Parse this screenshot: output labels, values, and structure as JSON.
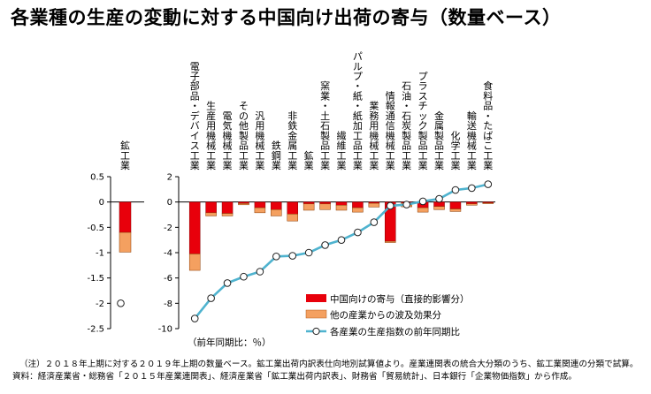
{
  "title": "各業種の生産の変動に対する中国向け出荷の寄与（数量ベース）",
  "notes": {
    "note": "（注）２０１８年上期に対する２０１９年上期の数量ベース。鉱工業出荷内訳表仕向地別試算値より。産業連関表の統合大分類のうち、鉱工業関連の分類で試算。",
    "source": "資料：経済産業省・総務省「２０１５年産業連関表」、経済産業省「鉱工業出荷内訳表」、財務省「貿易統計」、日本銀行「企業物価指数」から作成。"
  },
  "colors": {
    "china": "#e8000b",
    "spillover": "#f4a060",
    "line": "#4fb3cf",
    "axis": "#000000"
  },
  "chart_data": [
    {
      "type": "bar",
      "ylim": [
        -2.5,
        0.5
      ],
      "yticks": [
        "0.5",
        "0",
        "-0.5",
        "-1",
        "-1.5",
        "-2",
        "-2.5"
      ],
      "categories": [
        "鉱工業"
      ],
      "series": [
        {
          "name": "中国向けの寄与（直接的影響分）",
          "values": [
            -0.6
          ]
        },
        {
          "name": "他の産業からの波及効果分",
          "values": [
            -0.39
          ]
        },
        {
          "name": "各産業の生産指数の前年同期比",
          "values": [
            -2.0
          ]
        }
      ]
    },
    {
      "type": "bar",
      "ylim": [
        -10,
        2
      ],
      "yticks": [
        "2",
        "0",
        "-2",
        "-4",
        "-6",
        "-8",
        "-10"
      ],
      "unit_label": "（前年同期比：％）",
      "categories": [
        "電子部品・デバイス工業",
        "生産用機械工業",
        "電気機械工業",
        "その他製品工業",
        "汎用機械工業",
        "鉄鋼業",
        "非鉄金属工業",
        "鉱業",
        "窯業・土石製品工業",
        "繊維工業",
        "パルプ・紙・紙加工品工業",
        "業務用機械工業",
        "情報通信機械工業",
        "石油・石炭製品工業",
        "プラスチック製品工業",
        "金属製品工業",
        "化学工業",
        "輸送機械工業",
        "食料品・たばこ工業"
      ],
      "series": [
        {
          "name": "中国向けの寄与（直接的影響分）",
          "values": [
            -4.1,
            -0.85,
            -0.9,
            -0.12,
            -0.45,
            -0.6,
            -0.95,
            -0.15,
            -0.15,
            -0.25,
            -0.45,
            -0.1,
            -3.1,
            -0.08,
            -0.45,
            -0.35,
            -0.55,
            -0.15,
            -0.08
          ]
        },
        {
          "name": "他の産業からの波及効果分",
          "values": [
            -1.3,
            -0.25,
            -0.2,
            -0.1,
            -0.4,
            -0.5,
            -0.55,
            -0.5,
            -0.45,
            -0.4,
            -0.35,
            -0.3,
            -0.1,
            -0.3,
            -0.35,
            -0.25,
            -0.2,
            -0.1,
            -0.05
          ]
        },
        {
          "name": "各産業の生産指数の前年同期比",
          "values": [
            -9.2,
            -7.6,
            -6.4,
            -5.9,
            -5.5,
            -4.3,
            -4.25,
            -4.0,
            -3.4,
            -3.0,
            -2.4,
            -1.6,
            -0.3,
            -0.2,
            0.05,
            0.25,
            0.95,
            1.1,
            1.4
          ]
        }
      ]
    }
  ]
}
